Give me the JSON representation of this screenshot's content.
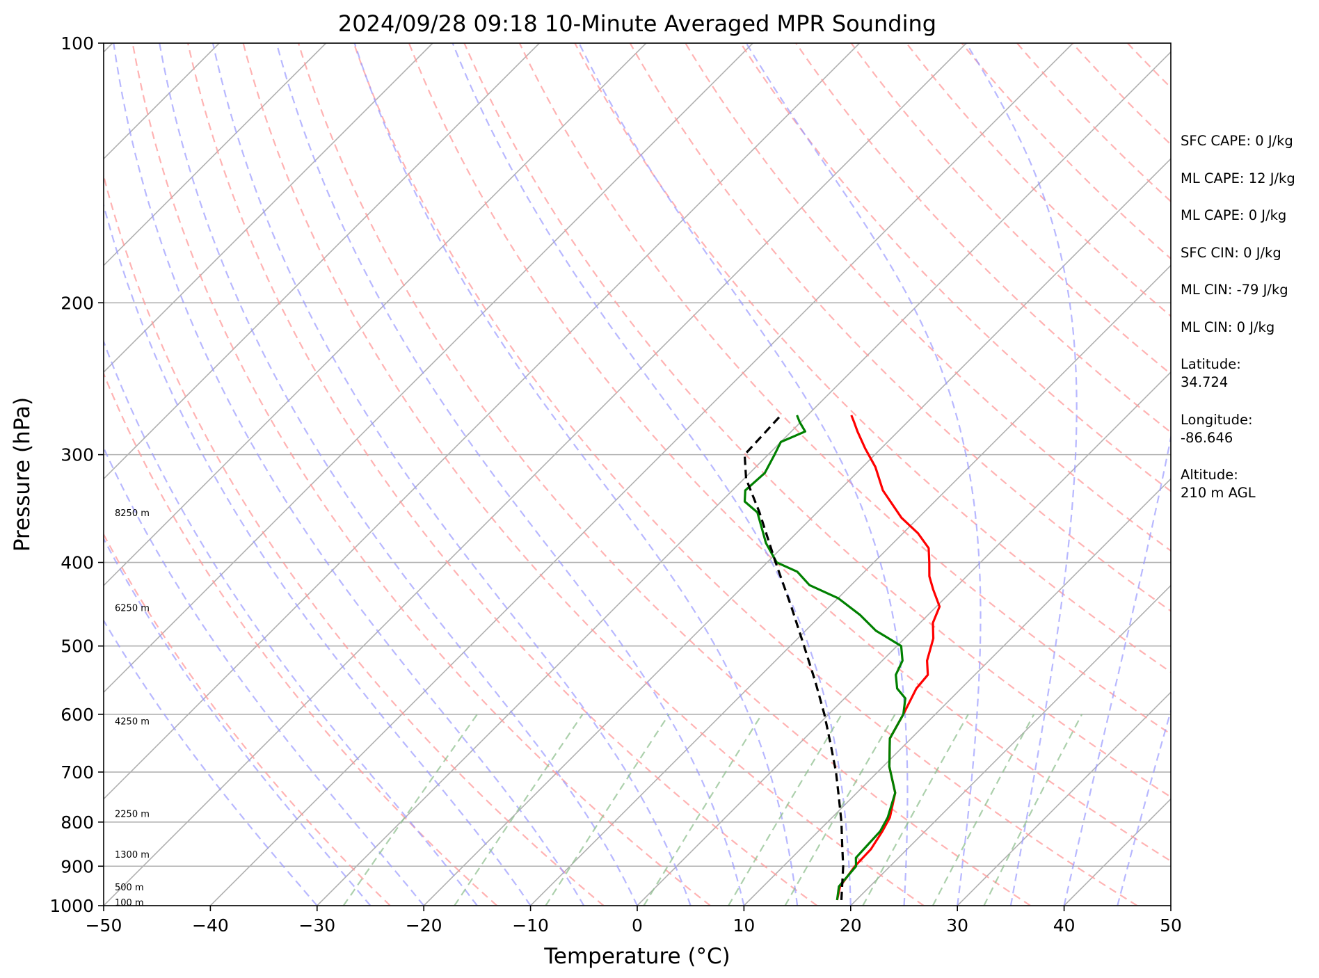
{
  "chart_data": {
    "type": "line",
    "subtype": "skew-T log-P sounding",
    "title": "2024/09/28 09:18 10-Minute Averaged MPR Sounding",
    "xlabel": "Temperature (°C)",
    "ylabel": "Pressure (hPa)",
    "xlim": [
      -50,
      50
    ],
    "ylim": [
      1000,
      100
    ],
    "y_scale": "log",
    "grid": true,
    "x_ticks": [
      -50,
      -40,
      -30,
      -20,
      -10,
      0,
      10,
      20,
      30,
      40,
      50
    ],
    "x_tick_labels": [
      "−50",
      "−40",
      "−30",
      "−20",
      "−10",
      "0",
      "10",
      "20",
      "30",
      "40",
      "50"
    ],
    "y_ticks": [
      1000,
      900,
      800,
      700,
      600,
      500,
      400,
      300,
      200,
      100
    ],
    "y_tick_labels": [
      "1000",
      "900",
      "800",
      "700",
      "600",
      "500",
      "400",
      "300",
      "200",
      "100"
    ],
    "height_labels": [
      {
        "p": 351,
        "text": "8250 m"
      },
      {
        "p": 452,
        "text": "6250 m"
      },
      {
        "p": 612,
        "text": "4250 m"
      },
      {
        "p": 783,
        "text": "2250 m"
      },
      {
        "p": 873,
        "text": "1300 m"
      },
      {
        "p": 953,
        "text": "500 m"
      },
      {
        "p": 993,
        "text": "100 m"
      }
    ],
    "series": [
      {
        "color": "#ff0000",
        "points": [
          [
            18.2,
            985
          ],
          [
            17.2,
            950
          ],
          [
            16.7,
            900
          ],
          [
            16.6,
            860
          ],
          [
            16.0,
            820
          ],
          [
            15.4,
            790
          ],
          [
            13.6,
            740
          ],
          [
            10.6,
            690
          ],
          [
            8.0,
            640
          ],
          [
            7.0,
            600
          ],
          [
            5.8,
            560
          ],
          [
            5.6,
            540
          ],
          [
            4.2,
            520
          ],
          [
            2.7,
            490
          ],
          [
            1.2,
            470
          ],
          [
            0.3,
            450
          ],
          [
            -1.9,
            430
          ],
          [
            -3.5,
            415
          ],
          [
            -4.8,
            400
          ],
          [
            -6.2,
            385
          ],
          [
            -8.6,
            370
          ],
          [
            -11.6,
            355
          ],
          [
            -15.9,
            330
          ],
          [
            -18.8,
            310
          ],
          [
            -21.5,
            295
          ],
          [
            -23.8,
            282
          ],
          [
            -25.0,
            275
          ],
          [
            -25.9,
            270
          ]
        ]
      },
      {
        "color": "#008000",
        "points": [
          [
            18.2,
            985
          ],
          [
            17.1,
            950
          ],
          [
            16.8,
            900
          ],
          [
            16.0,
            880
          ],
          [
            15.9,
            850
          ],
          [
            15.8,
            820
          ],
          [
            15.2,
            790
          ],
          [
            13.6,
            740
          ],
          [
            10.6,
            690
          ],
          [
            8.0,
            640
          ],
          [
            7.0,
            600
          ],
          [
            5.7,
            575
          ],
          [
            4.0,
            560
          ],
          [
            2.6,
            540
          ],
          [
            1.9,
            520
          ],
          [
            0.4,
            500
          ],
          [
            -3.4,
            480
          ],
          [
            -6.4,
            460
          ],
          [
            -10.0,
            440
          ],
          [
            -13.9,
            425
          ],
          [
            -16.3,
            410
          ],
          [
            -19.1,
            400
          ],
          [
            -21.9,
            380
          ],
          [
            -25.6,
            350
          ],
          [
            -27.8,
            340
          ],
          [
            -28.8,
            330
          ],
          [
            -28.6,
            315
          ],
          [
            -29.4,
            300
          ],
          [
            -30.0,
            290
          ],
          [
            -28.7,
            282
          ],
          [
            -30.1,
            275
          ],
          [
            -31.0,
            270
          ]
        ]
      },
      {
        "color": "#000000",
        "dashed": true,
        "points": [
          [
            18.6,
            985
          ],
          [
            17.4,
            950
          ],
          [
            15.6,
            900
          ],
          [
            13.5,
            850
          ],
          [
            11.3,
            800
          ],
          [
            8.8,
            750
          ],
          [
            6.1,
            700
          ],
          [
            3.0,
            650
          ],
          [
            -0.4,
            600
          ],
          [
            -4.3,
            550
          ],
          [
            -8.7,
            500
          ],
          [
            -13.6,
            450
          ],
          [
            -19.2,
            400
          ],
          [
            -25.4,
            350
          ],
          [
            -29.8,
            320
          ],
          [
            -32.2,
            300
          ],
          [
            -32.5,
            270
          ]
        ]
      }
    ]
  },
  "annotations": {
    "sfc_cape": "SFC CAPE: 0 J/kg",
    "ml_cape_1": "ML CAPE: 12 J/kg",
    "ml_cape_2": "ML CAPE: 0 J/kg",
    "sfc_cin": "SFC CIN: 0 J/kg",
    "ml_cin_1": "ML CIN: -79 J/kg",
    "ml_cin_2": "ML CIN: 0 J/kg",
    "latitude_label": "Latitude:",
    "latitude_value": "34.724",
    "longitude_label": "Longitude:",
    "longitude_value": "-86.646",
    "altitude_label": "Altitude:",
    "altitude_value": "210 m AGL"
  },
  "colors": {
    "isotherm": "#b0b0b0",
    "dry_adiabat": "#ff9a9a",
    "moist_adiabat": "#9a9aff",
    "mixing_ratio": "#90c090"
  }
}
